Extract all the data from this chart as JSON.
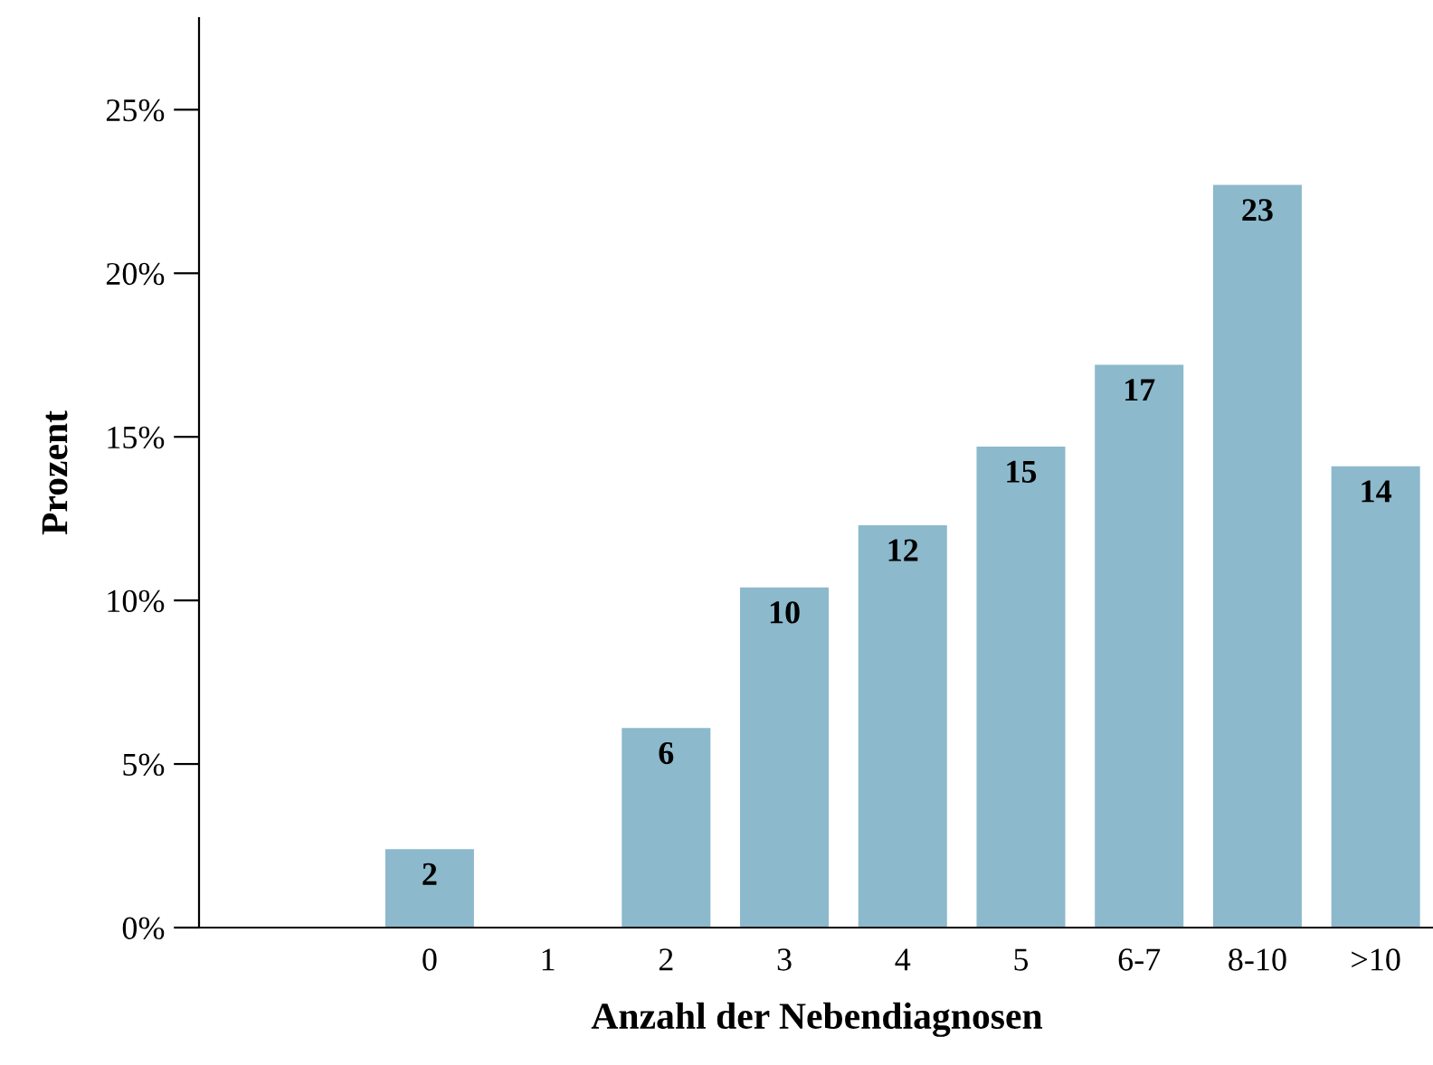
{
  "chart_data": {
    "type": "bar",
    "xlabel": "Anzahl der Nebendiagnosen",
    "ylabel": "Prozent",
    "categories": [
      "0",
      "1",
      "2",
      "3",
      "4",
      "5",
      "6-7",
      "8-10",
      ">10"
    ],
    "values": [
      2.4,
      0,
      6.1,
      10.4,
      12.3,
      14.7,
      17.2,
      22.7,
      14.1
    ],
    "value_labels": [
      "2",
      null,
      "6",
      "10",
      "12",
      "15",
      "17",
      "23",
      "14"
    ],
    "color": "#8cb9cc",
    "ylim": [
      0,
      27.8
    ],
    "yticks": [
      {
        "value": 0,
        "label": "0%"
      },
      {
        "value": 5,
        "label": "5%"
      },
      {
        "value": 10,
        "label": "10%"
      },
      {
        "value": 15,
        "label": "15%"
      },
      {
        "value": 20,
        "label": "20%"
      },
      {
        "value": 25,
        "label": "25%"
      }
    ],
    "grid": false,
    "legend": false
  }
}
